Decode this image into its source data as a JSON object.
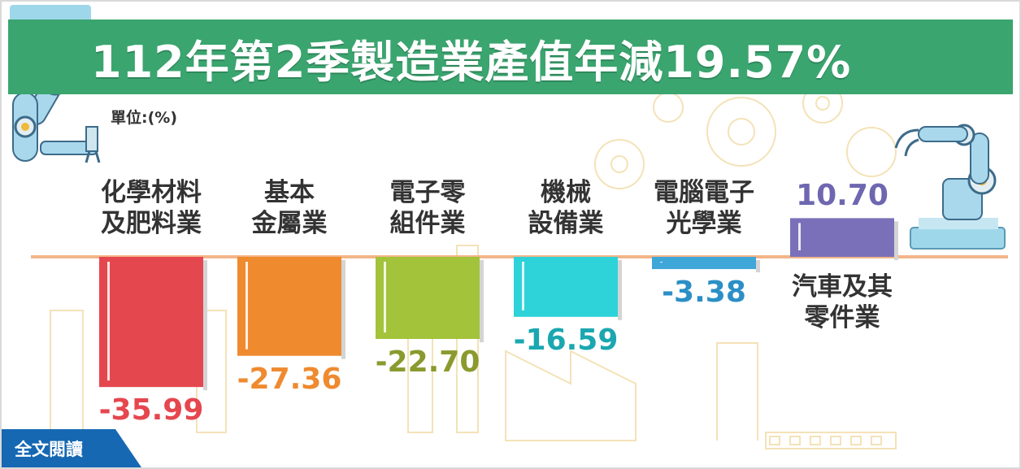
{
  "header": {
    "title": "112年第2季製造業產值年減19.57%"
  },
  "unit_label": "單位:(%)",
  "link": {
    "full_text_label": "全文閱讀"
  },
  "colors": {
    "banner": "#3aa56f",
    "baseline": "#f3b58a",
    "link_bg": "#1668b3"
  },
  "chart_data": {
    "type": "bar",
    "title": "112年第2季製造業產值年減19.57%",
    "unit": "單位:(%)",
    "categories": [
      [
        "化學材料",
        "及肥料業"
      ],
      [
        "基本",
        "金屬業"
      ],
      [
        "電子零",
        "組件業"
      ],
      [
        "機械",
        "設備業"
      ],
      [
        "電腦電子",
        "光學業"
      ],
      [
        "汽車及其",
        "零件業"
      ]
    ],
    "values": [
      -35.99,
      -27.36,
      -22.7,
      -16.59,
      -3.38,
      10.7
    ],
    "value_labels": [
      "-35.99",
      "-27.36",
      "-22.70",
      "-16.59",
      "-3.38",
      "10.70"
    ],
    "bar_colors": [
      "#e5474f",
      "#ef8a2f",
      "#a3c33a",
      "#2ed3d9",
      "#3fa6d8",
      "#7a70b9"
    ],
    "label_colors": [
      "#e5474f",
      "#ef8a2f",
      "#8a9a2e",
      "#1aa7b0",
      "#2b8fc6",
      "#6e67b0"
    ],
    "grid": false,
    "legend": "none"
  }
}
